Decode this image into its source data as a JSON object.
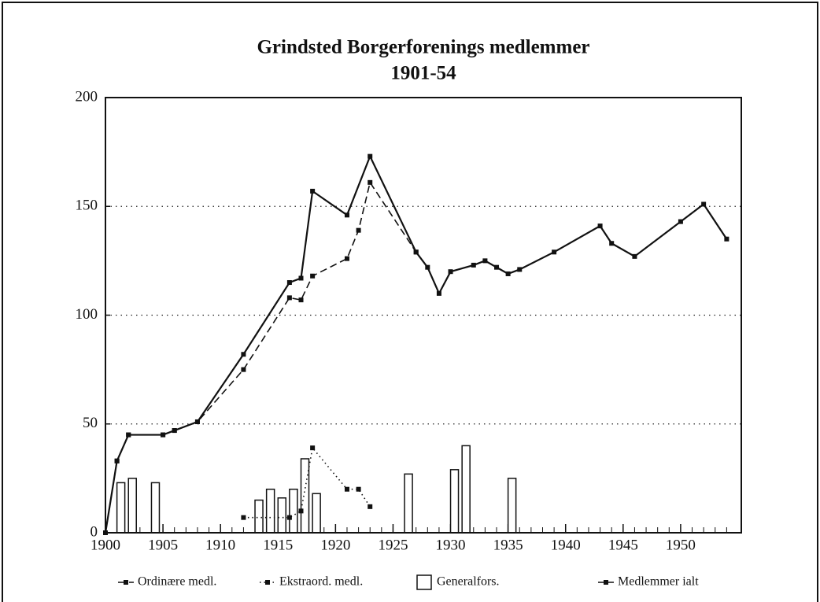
{
  "chart_data": {
    "type": "line",
    "title": "Grindsted Borgerforenings medlemmer",
    "subtitle": "1901-54",
    "xlim": [
      1900,
      1955
    ],
    "xticks": [
      1900,
      1905,
      1910,
      1915,
      1920,
      1925,
      1930,
      1935,
      1940,
      1945,
      1950
    ],
    "ylim": [
      0,
      200
    ],
    "yticks": [
      0,
      50,
      100,
      150,
      200
    ],
    "grid": true,
    "series": [
      {
        "name": "Ordinære medl.",
        "color": "#111111",
        "style": "dashed",
        "x": [
          1900,
          1901,
          1902,
          1905,
          1906,
          1908,
          1912,
          1916,
          1917,
          1918,
          1921,
          1922,
          1923,
          1927
        ],
        "values": [
          0,
          33,
          45,
          45,
          47,
          51,
          75,
          108,
          107,
          118,
          126,
          139,
          161,
          129
        ]
      },
      {
        "name": "Ekstraord. medl.",
        "color": "#111111",
        "style": "dotted",
        "x": [
          1912,
          1916,
          1917,
          1918,
          1921,
          1922,
          1923
        ],
        "values": [
          7,
          7,
          10,
          39,
          20,
          20,
          12
        ]
      },
      {
        "name": "Generalfors.",
        "color": "#111111",
        "style": "bar",
        "x": [
          1901,
          1902,
          1904,
          1913,
          1914,
          1915,
          1916,
          1917,
          1918,
          1926,
          1930,
          1931,
          1935
        ],
        "values": [
          23,
          25,
          23,
          15,
          20,
          16,
          20,
          34,
          18,
          27,
          29,
          40,
          25
        ]
      },
      {
        "name": "Medlemmer ialt",
        "color": "#111111",
        "style": "solid",
        "x": [
          1900,
          1901,
          1902,
          1905,
          1906,
          1908,
          1912,
          1916,
          1917,
          1918,
          1921,
          1923,
          1927,
          1928,
          1929,
          1930,
          1932,
          1933,
          1934,
          1935,
          1936,
          1939,
          1943,
          1944,
          1946,
          1950,
          1952,
          1954
        ],
        "values": [
          0,
          33,
          45,
          45,
          47,
          51,
          82,
          115,
          117,
          157,
          146,
          173,
          129,
          122,
          110,
          120,
          123,
          125,
          122,
          119,
          121,
          129,
          141,
          133,
          127,
          143,
          151,
          135
        ]
      }
    ]
  }
}
